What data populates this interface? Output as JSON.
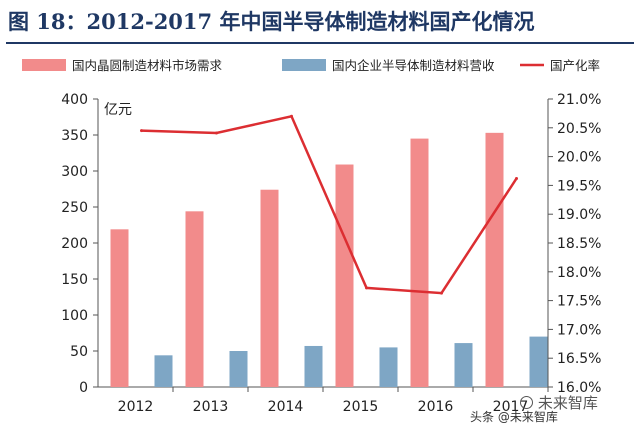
{
  "header": {
    "title": "图 18：2012-2017 年中国半导体制造材料国产化情况"
  },
  "watermark": {
    "platform": "头条",
    "account": "@未来智库",
    "brand": "未来智库"
  },
  "chart_data": {
    "type": "bar",
    "categories": [
      "2012",
      "2013",
      "2014",
      "2015",
      "2016",
      "2017"
    ],
    "series": [
      {
        "name": "国内晶圆制造材料市场需求",
        "kind": "bar",
        "axis": "left",
        "color": "#f28b8b",
        "values": [
          219,
          244,
          274,
          309,
          345,
          353
        ]
      },
      {
        "name": "国内企业半导体制造材料营收",
        "kind": "bar",
        "axis": "left",
        "color": "#7ea6c5",
        "values": [
          44,
          50,
          57,
          55,
          61,
          70
        ]
      },
      {
        "name": "国产化率",
        "kind": "line",
        "axis": "right",
        "color": "#dc2e32",
        "values": [
          20.45,
          20.41,
          20.7,
          17.72,
          17.63,
          19.62
        ]
      }
    ],
    "y_left": {
      "min": 0,
      "max": 400,
      "step": 50,
      "unit": "亿元",
      "ticks": [
        "0",
        "50",
        "100",
        "150",
        "200",
        "250",
        "300",
        "350",
        "400"
      ]
    },
    "y_right": {
      "min": 16.0,
      "max": 21.0,
      "step": 0.5,
      "ticks": [
        "16.0%",
        "16.5%",
        "17.0%",
        "17.5%",
        "18.0%",
        "18.5%",
        "19.0%",
        "19.5%",
        "20.0%",
        "20.5%",
        "21.0%"
      ]
    },
    "grid": false,
    "legend_position": "top"
  }
}
